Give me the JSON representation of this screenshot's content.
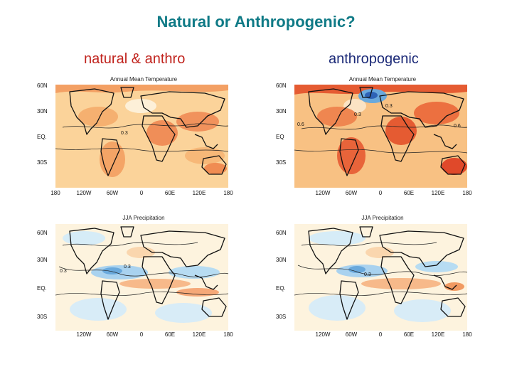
{
  "title": "Natural or Anthropogenic?",
  "columns": {
    "left": "natural & anthro",
    "right": "anthropogenic"
  },
  "panels": {
    "top_left": {
      "map_title": "Annual Mean Temperature",
      "lat_labels": [
        "60N",
        "30N",
        "EQ.",
        "30S"
      ],
      "lon_labels": [
        "180",
        "120W",
        "60W",
        "0",
        "60E",
        "120E",
        "180"
      ],
      "contour_labels": [
        "0.3"
      ]
    },
    "top_right": {
      "map_title": "Annual Mean Temperature",
      "lat_labels": [
        "60N",
        "30N",
        "EQ",
        "30S"
      ],
      "lon_labels": [
        "120W",
        "60W",
        "0",
        "60E",
        "120E",
        "180"
      ],
      "contour_labels": [
        "0.3",
        "0.6",
        "0.6",
        "0.3"
      ]
    },
    "bottom_left": {
      "map_title": "JJA Precipitation",
      "lat_labels": [
        "60N",
        "30N",
        "EQ.",
        "30S"
      ],
      "lon_labels": [
        "120W",
        "60W",
        "0",
        "60E",
        "120E",
        "180"
      ],
      "contour_labels": [
        "0.3",
        "0.3"
      ]
    },
    "bottom_right": {
      "map_title": "JJA Precipitation",
      "lat_labels": [
        "60N",
        "30N",
        "EQ.",
        "30S"
      ],
      "lon_labels": [
        "120W",
        "60W",
        "0",
        "60E",
        "120E",
        "180"
      ],
      "contour_labels": [
        "0.3"
      ]
    }
  },
  "colors": {
    "title": "#0f7a86",
    "left_label": "#c0221c",
    "right_label": "#1c2a78",
    "warm_light": "#fbd9a6",
    "warm": "#f7b06a",
    "warm_strong": "#ee7a3c",
    "hot": "#e0492a",
    "cool": "#b7dcf2",
    "cool_strong": "#6aa9dc",
    "cold": "#2e63b6"
  }
}
